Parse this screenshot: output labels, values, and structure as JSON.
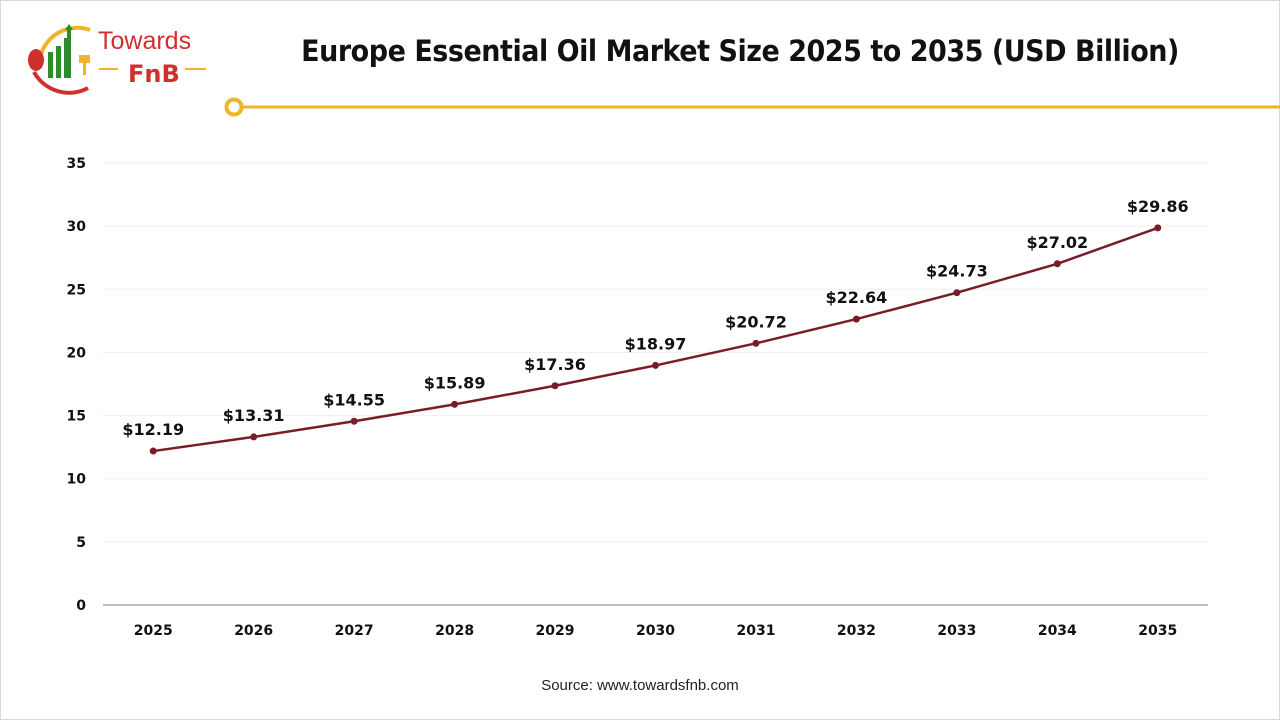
{
  "logo": {
    "text_top": "Towards",
    "text_bottom": "FnB"
  },
  "colors": {
    "line": "#7a1c27",
    "accent": "#f0b429",
    "logo_red": "#d0302c",
    "logo_green": "#2e8b2e"
  },
  "chart_data": {
    "type": "line",
    "title": "Europe Essential Oil Market Size 2025 to 2035 (USD Billion)",
    "categories": [
      "2025",
      "2026",
      "2027",
      "2028",
      "2029",
      "2030",
      "2031",
      "2032",
      "2033",
      "2034",
      "2035"
    ],
    "values": [
      12.19,
      13.31,
      14.55,
      15.89,
      17.36,
      18.97,
      20.72,
      22.64,
      24.73,
      27.02,
      29.86
    ],
    "data_labels": [
      "$12.19",
      "$13.31",
      "$14.55",
      "$15.89",
      "$17.36",
      "$18.97",
      "$20.72",
      "$22.64",
      "$24.73",
      "$27.02",
      "$29.86"
    ],
    "yticks": [
      "0",
      "5",
      "10",
      "15",
      "20",
      "25",
      "30",
      "35"
    ],
    "ylim": [
      0,
      35
    ],
    "grid": true,
    "xlabel": "",
    "ylabel": ""
  },
  "source": "Source: www.towardsfnb.com"
}
